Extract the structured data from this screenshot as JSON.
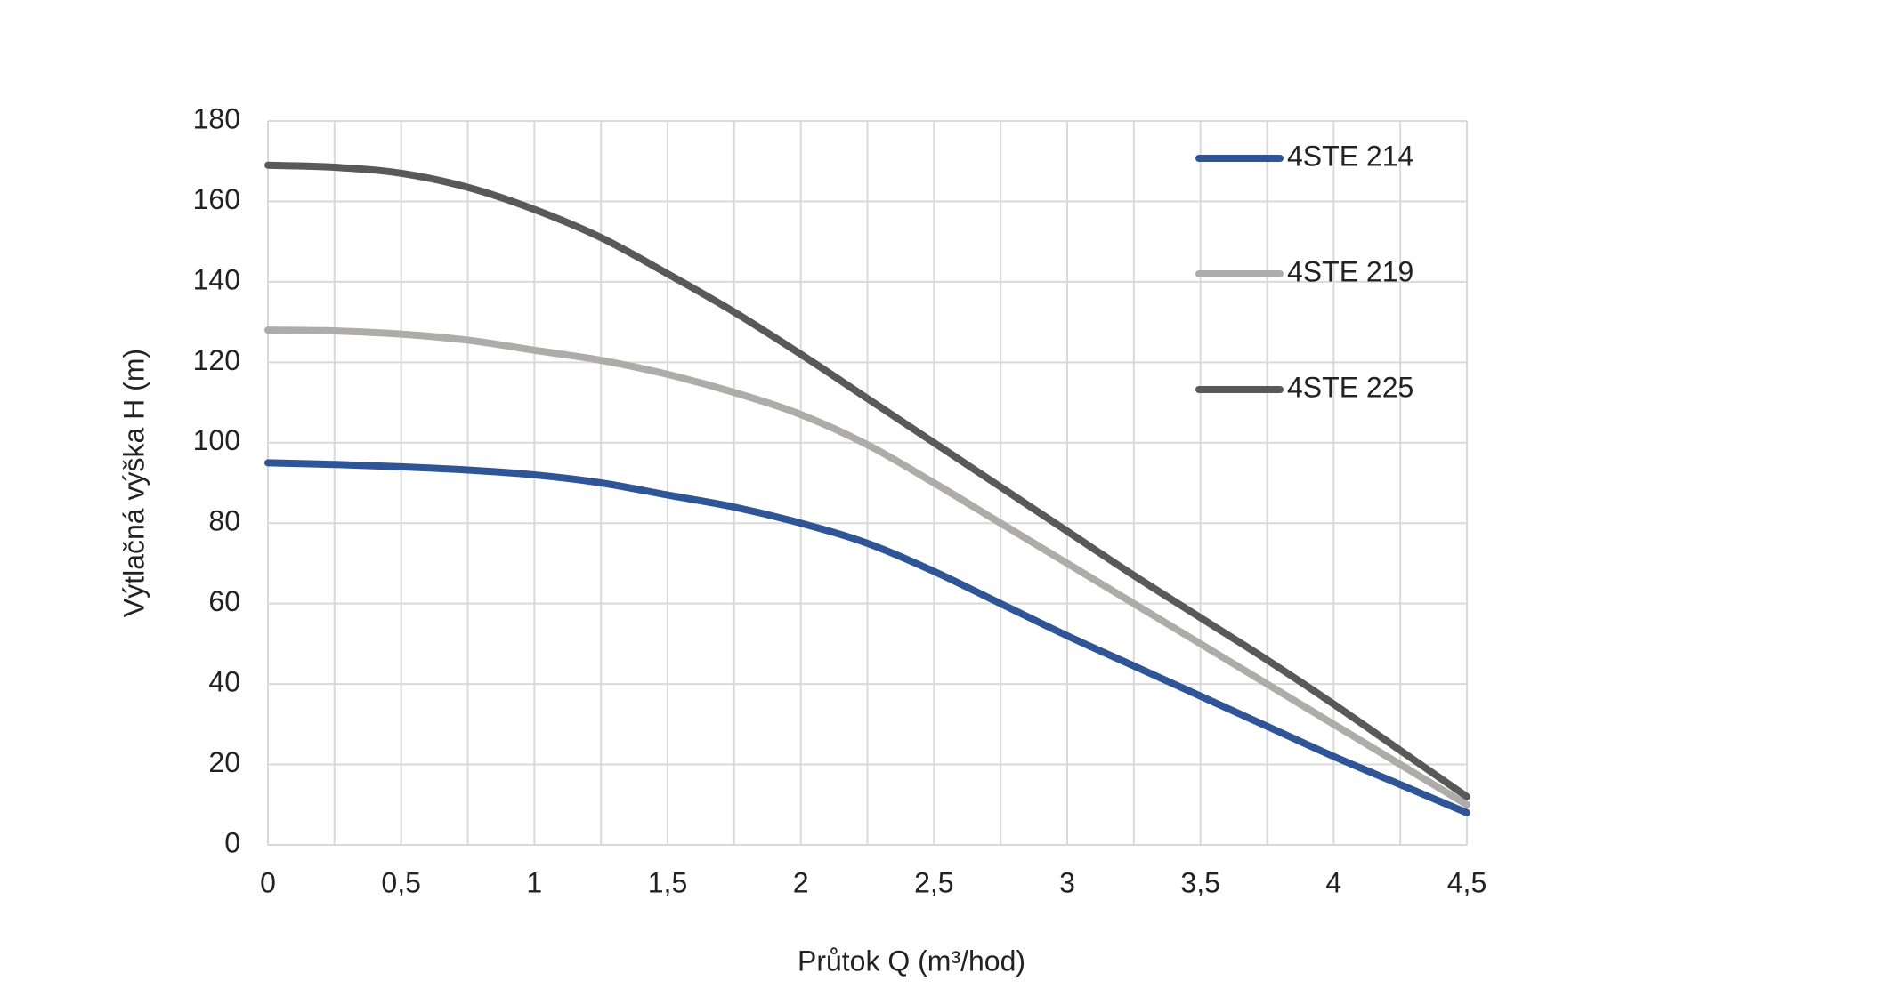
{
  "chart_data": {
    "type": "line",
    "xlabel": "Průtok Q (m³/hod)",
    "ylabel": "Výtlačná výška H (m)",
    "x": [
      0,
      0.25,
      0.5,
      0.75,
      1,
      1.25,
      1.5,
      1.75,
      2,
      2.25,
      2.5,
      2.75,
      3,
      3.25,
      3.5,
      3.75,
      4,
      4.25,
      4.5
    ],
    "series": [
      {
        "name": "4STE 214",
        "color": "#2f5597",
        "values": [
          95,
          94.6,
          94,
          93.2,
          92,
          90,
          87,
          84,
          80,
          75,
          68,
          60,
          52,
          44.5,
          37,
          29.5,
          22,
          15,
          8
        ]
      },
      {
        "name": "4STE 219",
        "color": "#afabab",
        "values": [
          128,
          127.8,
          127,
          125.5,
          123,
          120.5,
          117,
          112.5,
          107,
          99.5,
          90,
          80,
          70,
          60,
          50,
          40,
          30,
          20,
          10
        ]
      },
      {
        "name": "4STE 225",
        "color": "#595959",
        "values": [
          169,
          168.5,
          167,
          163.5,
          158,
          151,
          142,
          132.5,
          122,
          111,
          100,
          89,
          78,
          67,
          56.5,
          46,
          35,
          23.5,
          12
        ]
      }
    ],
    "xlim": [
      0,
      4.5
    ],
    "xticks": [
      0,
      {
        "value": 0.25,
        "label": null
      },
      {
        "value": 0.5,
        "label": "0,5"
      },
      {
        "value": 0.75,
        "label": null
      },
      1,
      {
        "value": 1.25,
        "label": null
      },
      {
        "value": 1.5,
        "label": "1,5"
      },
      {
        "value": 1.75,
        "label": null
      },
      2,
      {
        "value": 2.25,
        "label": null
      },
      {
        "value": 2.5,
        "label": "2,5"
      },
      {
        "value": 2.75,
        "label": null
      },
      3,
      {
        "value": 3.25,
        "label": null
      },
      {
        "value": 3.5,
        "label": "3,5"
      },
      {
        "value": 3.75,
        "label": null
      },
      4,
      {
        "value": 4.25,
        "label": null
      },
      {
        "value": 4.5,
        "label": "4,5"
      }
    ],
    "ylim": [
      0,
      180
    ],
    "yticks": [
      0,
      20,
      40,
      60,
      80,
      100,
      120,
      140,
      160,
      180
    ],
    "grid": true,
    "legend": "upper right"
  }
}
